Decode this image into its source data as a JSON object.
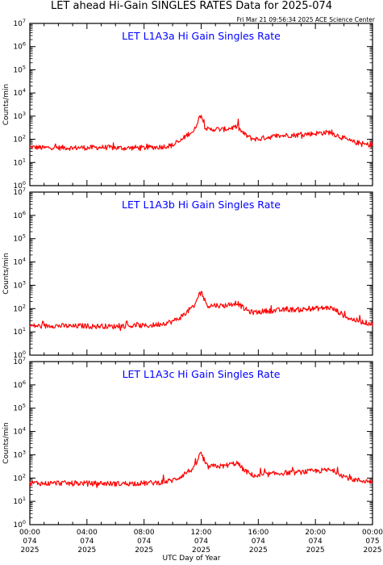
{
  "header": {
    "title": "LET ahead Hi-Gain SINGLES RATES Data for 2025-074",
    "subtitle": "Fri Mar 21 09:56:34 2025 ACE Science Center"
  },
  "chart_data": [
    {
      "type": "line",
      "title": "LET L1A3a Hi Gain Singles Rate",
      "ylabel": "Counts/min",
      "xlabel": "",
      "yscale": "log",
      "ylim": [
        1,
        10000000
      ],
      "xlim": [
        0,
        24
      ],
      "color": "#ff0000",
      "y_ticks": [
        "10^0",
        "10^1",
        "10^2",
        "10^3",
        "10^4",
        "10^5",
        "10^6",
        "10^7"
      ],
      "series": [
        {
          "x": [
            0,
            0.5,
            1,
            1.5,
            2,
            2.5,
            3,
            3.5,
            4,
            4.5,
            5,
            5.5,
            6,
            6.5,
            7,
            7.5,
            8,
            8.5,
            9,
            9.5,
            10,
            10.5,
            11,
            11.25,
            11.5,
            11.75,
            12,
            12.2,
            12.5,
            13,
            13.5,
            14,
            14.5,
            15,
            15.5,
            16,
            16.5,
            17,
            17.5,
            18,
            18.5,
            19,
            19.5,
            20,
            20.5,
            21,
            21.5,
            22,
            22.5,
            23,
            23.5,
            24
          ],
          "y": [
            45,
            45,
            42,
            45,
            43,
            44,
            42,
            44,
            43,
            44,
            45,
            44,
            43,
            42,
            42,
            44,
            43,
            45,
            46,
            50,
            55,
            80,
            150,
            200,
            220,
            600,
            1200,
            400,
            250,
            280,
            260,
            300,
            350,
            170,
            110,
            100,
            120,
            130,
            140,
            150,
            150,
            160,
            170,
            180,
            190,
            200,
            150,
            110,
            80,
            70,
            60,
            55
          ]
        }
      ]
    },
    {
      "type": "line",
      "title": "LET L1A3b Hi Gain Singles Rate",
      "ylabel": "Counts/min",
      "xlabel": "",
      "yscale": "log",
      "ylim": [
        1,
        10000000
      ],
      "xlim": [
        0,
        24
      ],
      "color": "#ff0000",
      "y_ticks": [
        "10^0",
        "10^1",
        "10^2",
        "10^3",
        "10^4",
        "10^5",
        "10^6",
        "10^7"
      ],
      "series": [
        {
          "x": [
            0,
            0.5,
            1,
            1.5,
            2,
            2.5,
            3,
            3.5,
            4,
            4.5,
            5,
            5.5,
            6,
            6.5,
            7,
            7.5,
            8,
            8.5,
            9,
            9.5,
            10,
            10.5,
            11,
            11.25,
            11.5,
            11.75,
            12,
            12.2,
            12.5,
            13,
            13.5,
            14,
            14.5,
            15,
            15.5,
            16,
            16.5,
            17,
            17.5,
            18,
            18.5,
            19,
            19.5,
            20,
            20.5,
            21,
            21.5,
            22,
            22.5,
            23,
            23.5,
            24
          ],
          "y": [
            18,
            18,
            17,
            19,
            18,
            18,
            17,
            18,
            18,
            17,
            18,
            17,
            17,
            18,
            18,
            19,
            18,
            19,
            21,
            24,
            28,
            40,
            70,
            100,
            110,
            300,
            600,
            250,
            130,
            140,
            130,
            150,
            180,
            100,
            70,
            70,
            80,
            80,
            85,
            90,
            90,
            90,
            95,
            100,
            105,
            110,
            80,
            50,
            35,
            30,
            25,
            22
          ]
        }
      ]
    },
    {
      "type": "line",
      "title": "LET L1A3c Hi Gain Singles Rate",
      "ylabel": "Counts/min",
      "xlabel": "UTC Day of Year",
      "yscale": "log",
      "ylim": [
        1,
        10000000
      ],
      "xlim": [
        0,
        24
      ],
      "color": "#ff0000",
      "y_ticks": [
        "10^0",
        "10^1",
        "10^2",
        "10^3",
        "10^4",
        "10^5",
        "10^6",
        "10^7"
      ],
      "x_tick_labels": [
        [
          "00:00",
          "074",
          "2025"
        ],
        [
          "04:00",
          "074",
          "2025"
        ],
        [
          "08:00",
          "074",
          "2025"
        ],
        [
          "12:00",
          "074",
          "2025"
        ],
        [
          "16:00",
          "074",
          "2025"
        ],
        [
          "20:00",
          "074",
          "2025"
        ],
        [
          "00:00",
          "075",
          "2025"
        ]
      ],
      "series": [
        {
          "x": [
            0,
            0.5,
            1,
            1.5,
            2,
            2.5,
            3,
            3.5,
            4,
            4.5,
            5,
            5.5,
            6,
            6.5,
            7,
            7.5,
            8,
            8.5,
            9,
            9.5,
            10,
            10.5,
            11,
            11.25,
            11.5,
            11.75,
            12,
            12.2,
            12.5,
            13,
            13.5,
            14,
            14.5,
            15,
            15.5,
            16,
            16.5,
            17,
            17.5,
            18,
            18.5,
            19,
            19.5,
            20,
            20.5,
            21,
            21.5,
            22,
            22.5,
            23,
            23.5,
            24
          ],
          "y": [
            60,
            62,
            58,
            60,
            62,
            60,
            58,
            60,
            60,
            58,
            60,
            58,
            57,
            58,
            58,
            60,
            60,
            62,
            64,
            70,
            80,
            110,
            180,
            220,
            250,
            600,
            1300,
            450,
            300,
            330,
            320,
            380,
            450,
            220,
            140,
            120,
            140,
            150,
            160,
            170,
            170,
            180,
            190,
            200,
            210,
            220,
            180,
            120,
            90,
            80,
            75,
            70
          ]
        }
      ]
    }
  ]
}
